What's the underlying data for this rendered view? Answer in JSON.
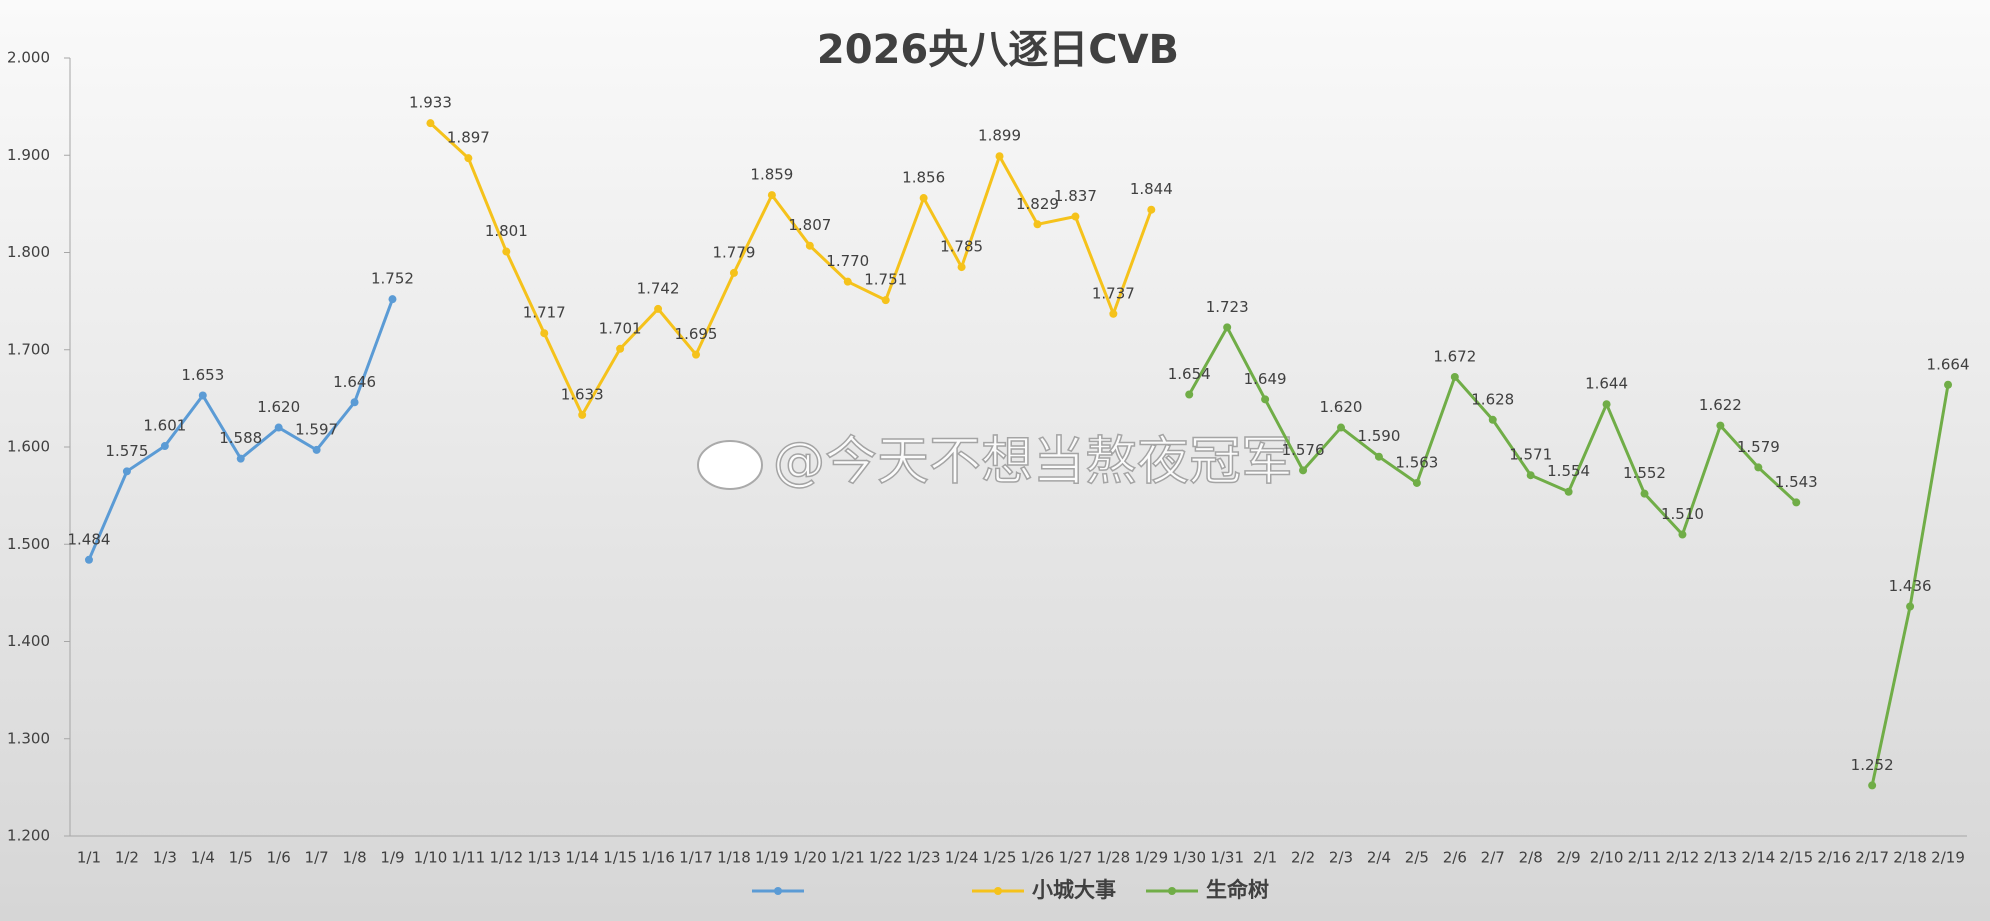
{
  "chart_data": {
    "type": "line",
    "title": "2026央八逐日CVB",
    "watermark": "@今天不想当熬夜冠军",
    "categories": [
      "1/1",
      "1/2",
      "1/3",
      "1/4",
      "1/5",
      "1/6",
      "1/7",
      "1/8",
      "1/9",
      "1/10",
      "1/11",
      "1/12",
      "1/13",
      "1/14",
      "1/15",
      "1/16",
      "1/17",
      "1/18",
      "1/19",
      "1/20",
      "1/21",
      "1/22",
      "1/23",
      "1/24",
      "1/25",
      "1/26",
      "1/27",
      "1/28",
      "1/29",
      "1/30",
      "1/31",
      "2/1",
      "2/2",
      "2/3",
      "2/4",
      "2/5",
      "2/6",
      "2/7",
      "2/8",
      "2/9",
      "2/10",
      "2/11",
      "2/12",
      "2/13",
      "2/14",
      "2/15",
      "2/16",
      "2/17",
      "2/18",
      "2/19"
    ],
    "ylim": [
      1.2,
      2.0
    ],
    "yticks": [
      {
        "value": 1.2,
        "label": "1.200"
      },
      {
        "value": 1.3,
        "label": "1.300"
      },
      {
        "value": 1.4,
        "label": "1.400"
      },
      {
        "value": 1.5,
        "label": "1.500"
      },
      {
        "value": 1.6,
        "label": "1.600"
      },
      {
        "value": 1.7,
        "label": "1.700"
      },
      {
        "value": 1.8,
        "label": "1.800"
      },
      {
        "value": 1.9,
        "label": "1.900"
      },
      {
        "value": 2.0,
        "label": "2.000"
      }
    ],
    "grid": false,
    "legend": "bottom",
    "series": [
      {
        "color": "#5b9bd5",
        "values": [
          1.484,
          1.575,
          1.601,
          1.653,
          1.588,
          1.62,
          1.597,
          1.646,
          1.752,
          null,
          null,
          null,
          null,
          null,
          null,
          null,
          null,
          null,
          null,
          null,
          null,
          null,
          null,
          null,
          null,
          null,
          null,
          null,
          null,
          null,
          null,
          null,
          null,
          null,
          null,
          null,
          null,
          null,
          null,
          null,
          null,
          null,
          null,
          null,
          null,
          null,
          null,
          null,
          null,
          null
        ],
        "value_labels": [
          "1.484",
          "1.575",
          "1.601",
          "1.653",
          "1.588",
          "1.620",
          "1.597",
          "1.646",
          "1.752",
          null,
          null,
          null,
          null,
          null,
          null,
          null,
          null,
          null,
          null,
          null,
          null,
          null,
          null,
          null,
          null,
          null,
          null,
          null,
          null,
          null,
          null,
          null,
          null,
          null,
          null,
          null,
          null,
          null,
          null,
          null,
          null,
          null,
          null,
          null,
          null,
          null,
          null,
          null,
          null,
          null
        ]
      },
      {
        "name": "小城大事",
        "color": "#f5c21b",
        "values": [
          null,
          null,
          null,
          null,
          null,
          null,
          null,
          null,
          null,
          1.933,
          1.897,
          1.801,
          1.717,
          1.633,
          1.701,
          1.742,
          1.695,
          1.779,
          1.859,
          1.807,
          1.77,
          1.751,
          1.856,
          1.785,
          1.899,
          1.829,
          1.837,
          1.737,
          1.844,
          null,
          null,
          null,
          null,
          null,
          null,
          null,
          null,
          null,
          null,
          null,
          null,
          null,
          null,
          null,
          null,
          null,
          null,
          null,
          null,
          null
        ],
        "value_labels": [
          null,
          null,
          null,
          null,
          null,
          null,
          null,
          null,
          null,
          "1.933",
          "1.897",
          "1.801",
          "1.717",
          "1.633",
          "1.701",
          "1.742",
          "1.695",
          "1.779",
          "1.859",
          "1.807",
          "1.770",
          "1.751",
          "1.856",
          "1.785",
          "1.899",
          "1.829",
          "1.837",
          "1.737",
          "1.844",
          null,
          null,
          null,
          null,
          null,
          null,
          null,
          null,
          null,
          null,
          null,
          null,
          null,
          null,
          null,
          null,
          null,
          null,
          null,
          null,
          null
        ]
      },
      {
        "name": "生命树",
        "color": "#70ad47",
        "values": [
          null,
          null,
          null,
          null,
          null,
          null,
          null,
          null,
          null,
          null,
          null,
          null,
          null,
          null,
          null,
          null,
          null,
          null,
          null,
          null,
          null,
          null,
          null,
          null,
          null,
          null,
          null,
          null,
          null,
          1.654,
          1.723,
          1.649,
          1.576,
          1.62,
          1.59,
          1.563,
          1.672,
          1.628,
          1.571,
          1.554,
          1.644,
          1.552,
          1.51,
          1.622,
          1.579,
          1.543,
          null,
          1.252,
          1.436,
          1.664
        ],
        "value_labels": [
          null,
          null,
          null,
          null,
          null,
          null,
          null,
          null,
          null,
          null,
          null,
          null,
          null,
          null,
          null,
          null,
          null,
          null,
          null,
          null,
          null,
          null,
          null,
          null,
          null,
          null,
          null,
          null,
          null,
          "1.654",
          "1.723",
          "1.649",
          "1.576",
          "1.620",
          "1.590",
          "1.563",
          "1.672",
          "1.628",
          "1.571",
          "1.554",
          "1.644",
          "1.552",
          "1.510",
          "1.622",
          "1.579",
          "1.543",
          null,
          "1.252",
          "1.436",
          "1.664"
        ]
      }
    ]
  }
}
